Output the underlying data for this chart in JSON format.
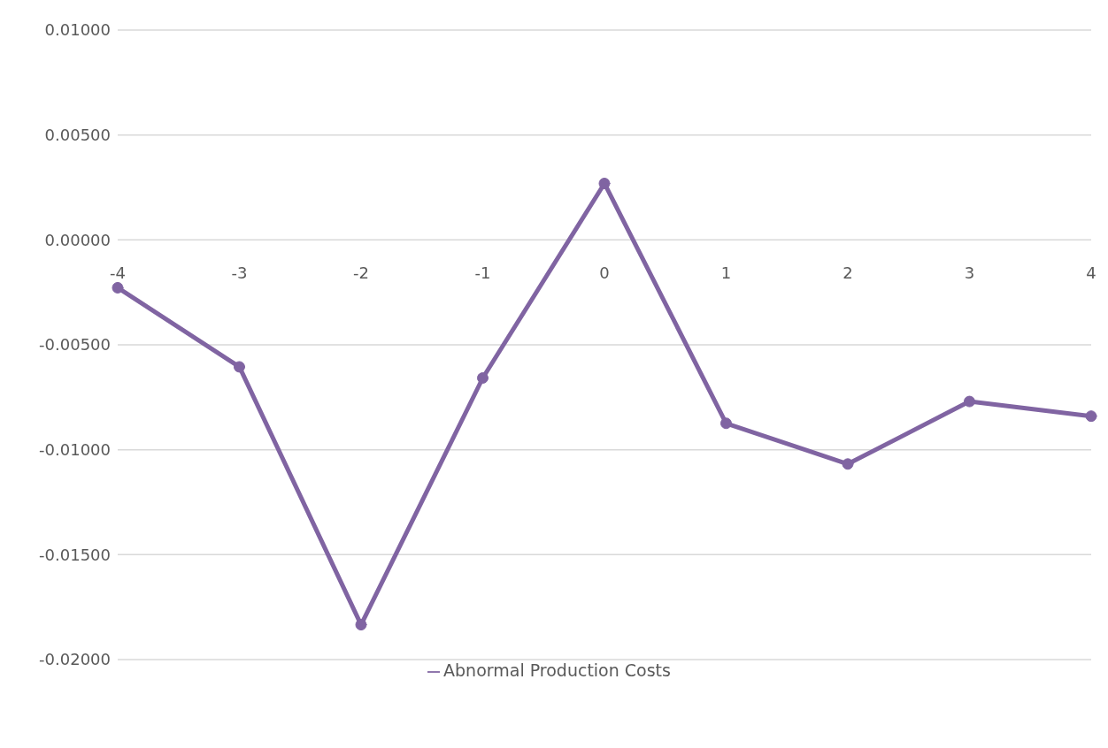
{
  "chart_data": {
    "type": "line",
    "categories": [
      "-4",
      "-3",
      "-2",
      "-1",
      "0",
      "1",
      "2",
      "3",
      "4"
    ],
    "series": [
      {
        "name": "Abnormal Production Costs",
        "color": "#8064a2",
        "values": [
          -0.00228,
          -0.00605,
          -0.01834,
          -0.00658,
          0.00269,
          -0.00874,
          -0.01068,
          -0.0077,
          -0.0084
        ]
      }
    ],
    "ylim": [
      -0.02,
      0.01
    ],
    "yticks": [
      {
        "value": -0.02,
        "label": "-0.02000"
      },
      {
        "value": -0.015,
        "label": "-0.01500"
      },
      {
        "value": -0.01,
        "label": "-0.01000"
      },
      {
        "value": -0.005,
        "label": "-0.00500"
      },
      {
        "value": 0,
        "label": "0.00000"
      },
      {
        "value": 0.005,
        "label": "0.00500"
      },
      {
        "value": 0.01,
        "label": "0.01000"
      }
    ],
    "grid": "y",
    "legend": "bottom",
    "marker": "circle",
    "line_style": "solid"
  }
}
